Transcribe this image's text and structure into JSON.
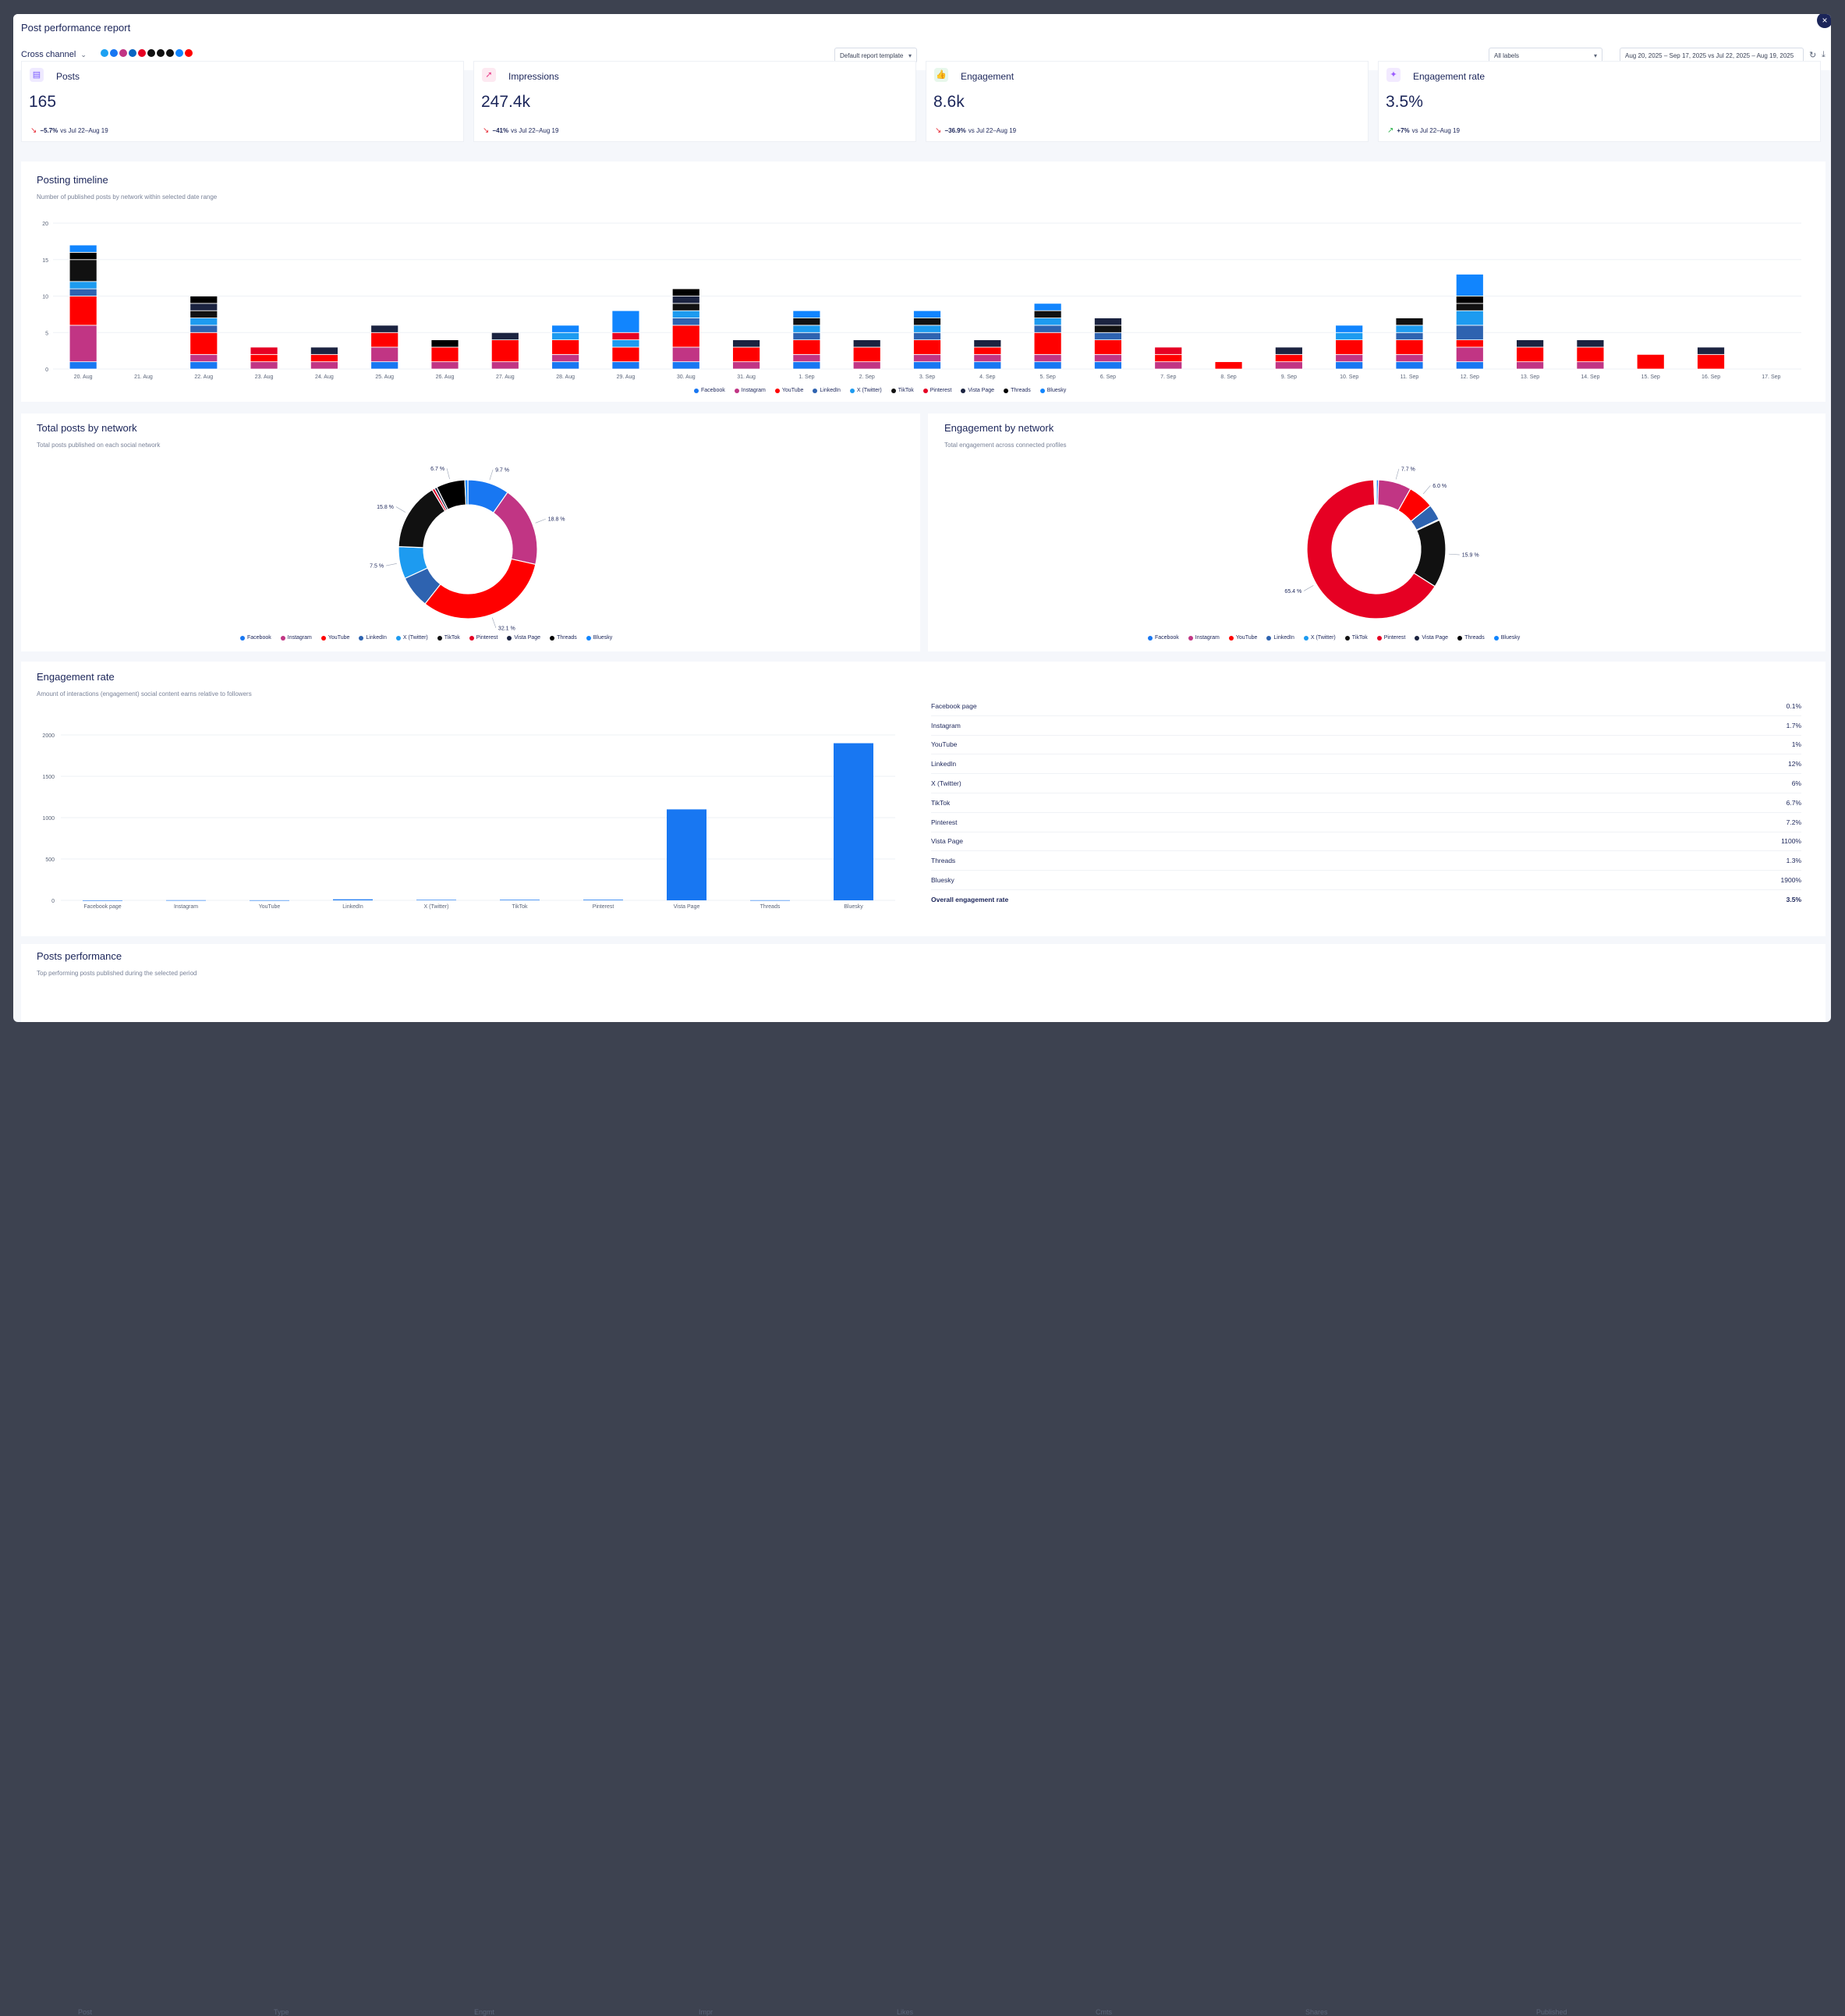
{
  "window": {
    "title": "Post performance report"
  },
  "toolbar": {
    "channel_label": "Cross channel",
    "network_icons": [
      {
        "name": "x-icon",
        "color": "#1da1f2"
      },
      {
        "name": "facebook-icon",
        "color": "#1877f2"
      },
      {
        "name": "instagram-icon",
        "color": "#c13584"
      },
      {
        "name": "linkedin-icon",
        "color": "#0a66c2"
      },
      {
        "name": "pinterest-icon",
        "color": "#e60023"
      },
      {
        "name": "threads-icon",
        "color": "#111111"
      },
      {
        "name": "tiktok-icon",
        "color": "#111111"
      },
      {
        "name": "x-twitter-icon",
        "color": "#111111"
      },
      {
        "name": "bluesky-icon",
        "color": "#1185fe"
      },
      {
        "name": "youtube-icon",
        "color": "#ff0000"
      }
    ],
    "template_select": "Default report template",
    "labels_select": "All labels",
    "date_range": "Aug 20, 2025 – Sep 17, 2025 vs Jul 22, 2025 – Aug 19, 2025"
  },
  "kpis": [
    {
      "label": "Posts",
      "value": "165",
      "arrow": "↘",
      "change": "−5.7%",
      "compare": "vs Jul 22–Aug 19",
      "trend_color": "#e8303a",
      "icon_color": "#7b5cff",
      "icon_bg": "#efeaff"
    },
    {
      "label": "Impressions",
      "value": "247.4k",
      "arrow": "↘",
      "change": "−41%",
      "compare": "vs Jul 22–Aug 19",
      "trend_color": "#e8303a",
      "icon_color": "#e8408a",
      "icon_bg": "#fde9f1"
    },
    {
      "label": "Engagement",
      "value": "8.6k",
      "arrow": "↘",
      "change": "−36.9%",
      "compare": "vs Jul 22–Aug 19",
      "trend_color": "#e8303a",
      "icon_color": "#2bb34a",
      "icon_bg": "#e7f7eb"
    },
    {
      "label": "Engagement rate",
      "value": "3.5%",
      "arrow": "↗",
      "change": "+7%",
      "compare": "vs Jul 22–Aug 19",
      "trend_color": "#2bb34a",
      "icon_color": "#9b5cff",
      "icon_bg": "#f2eaff"
    }
  ],
  "networks": [
    {
      "name": "Facebook",
      "color": "#1877f2"
    },
    {
      "name": "Instagram",
      "color": "#c13584"
    },
    {
      "name": "YouTube",
      "color": "#ff0000"
    },
    {
      "name": "LinkedIn",
      "color": "#2e63b0"
    },
    {
      "name": "X (Twitter)",
      "color": "#1d9bf0"
    },
    {
      "name": "TikTok",
      "color": "#111111"
    },
    {
      "name": "Pinterest",
      "color": "#e60023"
    },
    {
      "name": "Vista Page",
      "color": "#1b2340"
    },
    {
      "name": "Threads",
      "color": "#000000"
    },
    {
      "name": "Bluesky",
      "color": "#1185fe"
    }
  ],
  "posting_timeline": {
    "title": "Posting timeline",
    "subtitle": "Number of published posts by network within selected date range",
    "chart_data": {
      "type": "bar",
      "stacked": true,
      "ylim": [
        0,
        20
      ],
      "yticks": [
        0,
        5,
        10,
        15,
        20
      ],
      "categories": [
        "20. Aug",
        "21. Aug",
        "22. Aug",
        "23. Aug",
        "24. Aug",
        "25. Aug",
        "26. Aug",
        "27. Aug",
        "28. Aug",
        "29. Aug",
        "30. Aug",
        "31. Aug",
        "1. Sep",
        "2. Sep",
        "3. Sep",
        "4. Sep",
        "5. Sep",
        "6. Sep",
        "7. Sep",
        "8. Sep",
        "9. Sep",
        "10. Sep",
        "11. Sep",
        "12. Sep",
        "13. Sep",
        "14. Sep",
        "15. Sep",
        "16. Sep",
        "17. Sep"
      ],
      "series": [
        {
          "name": "Facebook",
          "values": [
            1,
            0,
            1,
            0,
            0,
            1,
            0,
            0,
            1,
            1,
            1,
            0,
            1,
            0,
            1,
            1,
            1,
            1,
            0,
            0,
            0,
            1,
            1,
            1,
            0,
            0,
            0,
            0,
            0
          ]
        },
        {
          "name": "Instagram",
          "values": [
            5,
            0,
            1,
            1,
            1,
            2,
            1,
            1,
            1,
            0,
            2,
            1,
            1,
            1,
            1,
            1,
            1,
            1,
            1,
            0,
            1,
            1,
            1,
            2,
            1,
            1,
            0,
            0,
            0
          ]
        },
        {
          "name": "YouTube",
          "values": [
            4,
            0,
            3,
            1,
            1,
            2,
            2,
            3,
            2,
            2,
            3,
            2,
            2,
            2,
            2,
            1,
            3,
            2,
            1,
            1,
            1,
            2,
            2,
            1,
            2,
            2,
            2,
            2,
            0
          ]
        },
        {
          "name": "LinkedIn",
          "values": [
            1,
            0,
            1,
            0,
            0,
            0,
            0,
            0,
            0,
            0,
            1,
            0,
            1,
            0,
            1,
            0,
            1,
            1,
            0,
            0,
            0,
            0,
            1,
            2,
            0,
            0,
            0,
            0,
            0
          ]
        },
        {
          "name": "X (Twitter)",
          "values": [
            1,
            0,
            1,
            0,
            0,
            0,
            0,
            0,
            1,
            1,
            1,
            0,
            1,
            0,
            1,
            0,
            1,
            0,
            0,
            0,
            0,
            1,
            1,
            2,
            0,
            0,
            0,
            0,
            0
          ]
        },
        {
          "name": "TikTok",
          "values": [
            3,
            0,
            1,
            0,
            0,
            0,
            0,
            0,
            0,
            0,
            1,
            0,
            1,
            0,
            1,
            0,
            1,
            1,
            0,
            0,
            0,
            0,
            1,
            1,
            0,
            0,
            0,
            0,
            0
          ]
        },
        {
          "name": "Pinterest",
          "values": [
            0,
            0,
            0,
            1,
            0,
            0,
            0,
            0,
            0,
            1,
            0,
            0,
            0,
            0,
            0,
            0,
            0,
            0,
            1,
            0,
            0,
            0,
            0,
            0,
            0,
            0,
            0,
            0,
            0
          ]
        },
        {
          "name": "Vista Page",
          "values": [
            0,
            0,
            1,
            0,
            1,
            1,
            0,
            1,
            0,
            0,
            1,
            1,
            0,
            1,
            0,
            1,
            0,
            1,
            0,
            0,
            1,
            0,
            0,
            0,
            1,
            1,
            0,
            1,
            0
          ]
        },
        {
          "name": "Threads",
          "values": [
            1,
            0,
            1,
            0,
            0,
            0,
            1,
            0,
            0,
            0,
            1,
            0,
            0,
            0,
            0,
            0,
            0,
            0,
            0,
            0,
            0,
            0,
            0,
            1,
            0,
            0,
            0,
            0,
            0
          ]
        },
        {
          "name": "Bluesky",
          "values": [
            1,
            0,
            0,
            0,
            0,
            0,
            0,
            0,
            1,
            3,
            0,
            0,
            1,
            0,
            1,
            0,
            1,
            0,
            0,
            0,
            0,
            1,
            0,
            3,
            0,
            0,
            0,
            0,
            0
          ]
        }
      ]
    }
  },
  "total_posts": {
    "title": "Total posts by network",
    "subtitle": "Total posts published on each social network",
    "chart_data": {
      "type": "pie",
      "donut": true,
      "slices": [
        {
          "name": "Facebook",
          "value": 9.7
        },
        {
          "name": "Instagram",
          "value": 18.8
        },
        {
          "name": "YouTube",
          "value": 32.1
        },
        {
          "name": "LinkedIn",
          "value": 7.5
        },
        {
          "name": "X (Twitter)",
          "value": 7.5
        },
        {
          "name": "TikTok",
          "value": 15.8
        },
        {
          "name": "Pinterest",
          "value": 0.6
        },
        {
          "name": "Vista Page",
          "value": 0.6
        },
        {
          "name": "Threads",
          "value": 6.7
        },
        {
          "name": "Bluesky",
          "value": 0.7
        }
      ],
      "labels": [
        {
          "text": "9.7 %",
          "slice": 0
        },
        {
          "text": "18.8 %",
          "slice": 1
        },
        {
          "text": "32.1 %",
          "slice": 2
        },
        {
          "text": "7.5 %",
          "slice": 4
        },
        {
          "text": "15.8 %",
          "slice": 5
        },
        {
          "text": "6.7 %",
          "slice": 8
        }
      ]
    }
  },
  "engagement_by_network": {
    "title": "Engagement by network",
    "subtitle": "Total engagement across connected profiles",
    "chart_data": {
      "type": "pie",
      "donut": true,
      "slices": [
        {
          "name": "Facebook",
          "value": 0.5
        },
        {
          "name": "Instagram",
          "value": 7.7
        },
        {
          "name": "YouTube",
          "value": 6.0
        },
        {
          "name": "LinkedIn",
          "value": 3.7
        },
        {
          "name": "X (Twitter)",
          "value": 0.2
        },
        {
          "name": "TikTok",
          "value": 15.9
        },
        {
          "name": "Pinterest",
          "value": 65.4
        },
        {
          "name": "Vista Page",
          "value": 0.2
        },
        {
          "name": "Threads",
          "value": 0.2
        },
        {
          "name": "Bluesky",
          "value": 0.2
        }
      ],
      "labels": [
        {
          "text": "7.7 %",
          "slice": 1
        },
        {
          "text": "6.0 %",
          "slice": 2
        },
        {
          "text": "15.9 %",
          "slice": 5
        },
        {
          "text": "65.4 %",
          "slice": 6
        }
      ]
    }
  },
  "engagement_rate": {
    "title": "Engagement rate",
    "subtitle": "Amount of interactions (engagement) social content earns relative to followers",
    "chart_data": {
      "type": "bar",
      "ylim": [
        0,
        2000
      ],
      "yticks": [
        0,
        500,
        1000,
        1500,
        2000
      ],
      "categories": [
        "Facebook page",
        "Instagram",
        "YouTube",
        "LinkedIn",
        "X (Twitter)",
        "TikTok",
        "Pinterest",
        "Vista Page",
        "Threads",
        "Bluesky"
      ],
      "values": [
        0.1,
        1.7,
        1,
        12,
        6,
        6.7,
        7.2,
        1100,
        1.3,
        1900
      ],
      "color": "#1877f2"
    },
    "table": [
      {
        "name": "Facebook page",
        "value": "0.1%"
      },
      {
        "name": "Instagram",
        "value": "1.7%"
      },
      {
        "name": "YouTube",
        "value": "1%"
      },
      {
        "name": "LinkedIn",
        "value": "12%"
      },
      {
        "name": "X (Twitter)",
        "value": "6%"
      },
      {
        "name": "TikTok",
        "value": "6.7%"
      },
      {
        "name": "Pinterest",
        "value": "7.2%"
      },
      {
        "name": "Vista Page",
        "value": "1100%"
      },
      {
        "name": "Threads",
        "value": "1.3%"
      },
      {
        "name": "Bluesky",
        "value": "1900%"
      }
    ],
    "overall_label": "Overall engagement rate",
    "overall_value": "3.5%"
  },
  "posts_performance": {
    "title": "Posts performance",
    "subtitle": "Top performing posts published during the selected period",
    "columns": [
      "Post",
      "Type",
      "Engmt",
      "Impr",
      "Likes",
      "Cmts",
      "Shares",
      "Published"
    ],
    "sort_arrow": "↓"
  }
}
